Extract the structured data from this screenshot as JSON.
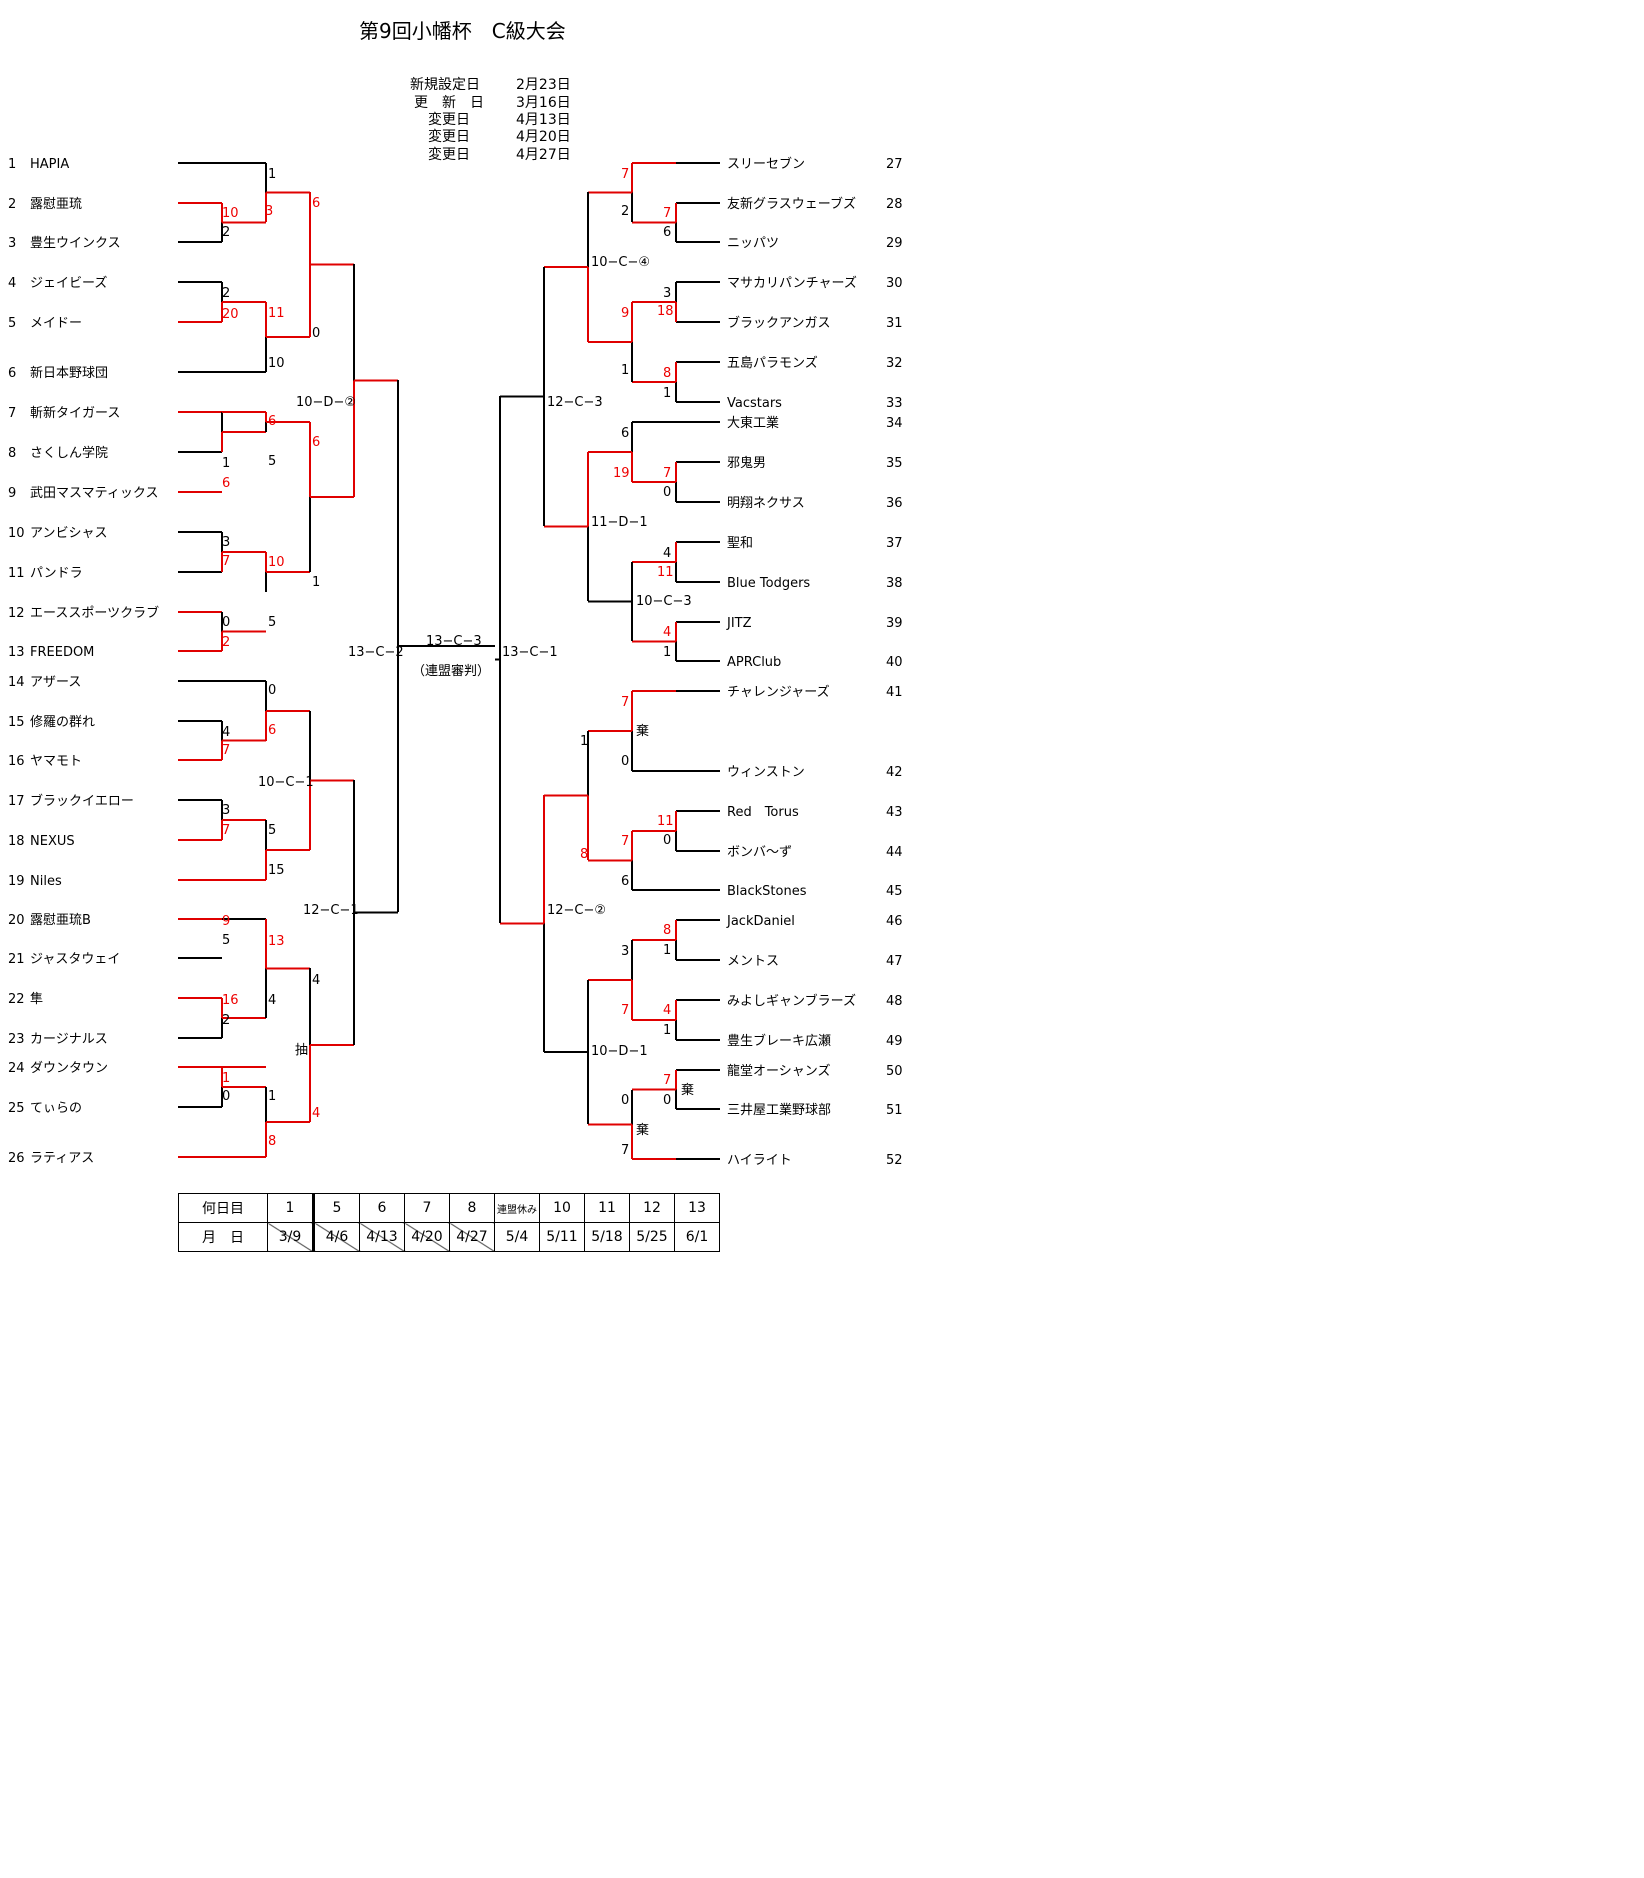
{
  "title": "第9回小幡杯　C級大会",
  "updates": [
    {
      "label": "新規設定日",
      "date": "2月23日",
      "color": "#0000cc"
    },
    {
      "label": "更　新　日",
      "date": "3月16日",
      "color": "#1aa0d8"
    },
    {
      "label": "変更日",
      "date": "4月13日",
      "color": "#2c78c8"
    },
    {
      "label": "変更日",
      "date": "4月20日",
      "color": "#1f5fa8"
    },
    {
      "label": "変更日",
      "date": "4月27日",
      "color": "#e00000"
    }
  ],
  "teams_left": [
    {
      "no": "1",
      "name": "HAPIA"
    },
    {
      "no": "2",
      "name": "露慰亜琉"
    },
    {
      "no": "3",
      "name": "豊生ウインクス"
    },
    {
      "no": "4",
      "name": "ジェイビーズ"
    },
    {
      "no": "5",
      "name": "メイドー"
    },
    {
      "no": "6",
      "name": "新日本野球団"
    },
    {
      "no": "7",
      "name": "斬新タイガース"
    },
    {
      "no": "8",
      "name": "さくしん学院"
    },
    {
      "no": "9",
      "name": "武田マスマティックス"
    },
    {
      "no": "10",
      "name": "アンビシャス"
    },
    {
      "no": "11",
      "name": "パンドラ"
    },
    {
      "no": "12",
      "name": "エーススポーツクラブ"
    },
    {
      "no": "13",
      "name": "FREEDOM"
    },
    {
      "no": "14",
      "name": "アザース"
    },
    {
      "no": "15",
      "name": "修羅の群れ"
    },
    {
      "no": "16",
      "name": "ヤマモト"
    },
    {
      "no": "17",
      "name": "ブラックイエロー"
    },
    {
      "no": "18",
      "name": "NEXUS"
    },
    {
      "no": "19",
      "name": "Niles"
    },
    {
      "no": "20",
      "name": "露慰亜琉B"
    },
    {
      "no": "21",
      "name": "ジャスタウェイ"
    },
    {
      "no": "22",
      "name": "隼"
    },
    {
      "no": "23",
      "name": "カージナルス"
    },
    {
      "no": "24",
      "name": "ダウンタウン"
    },
    {
      "no": "25",
      "name": "てぃらの"
    },
    {
      "no": "26",
      "name": "ラティアス"
    }
  ],
  "teams_right": [
    {
      "no": "27",
      "name": "スリーセブン"
    },
    {
      "no": "28",
      "name": "友新グラスウェーブズ"
    },
    {
      "no": "29",
      "name": "ニッパツ"
    },
    {
      "no": "30",
      "name": "マサカリパンチャーズ"
    },
    {
      "no": "31",
      "name": "ブラックアンガス"
    },
    {
      "no": "32",
      "name": "五島パラモンズ"
    },
    {
      "no": "33",
      "name": "Vacstars"
    },
    {
      "no": "34",
      "name": "大東工業"
    },
    {
      "no": "35",
      "name": "邪鬼男"
    },
    {
      "no": "36",
      "name": "明翔ネクサス"
    },
    {
      "no": "37",
      "name": "聖和"
    },
    {
      "no": "38",
      "name": "Blue Todgers"
    },
    {
      "no": "39",
      "name": "JITZ"
    },
    {
      "no": "40",
      "name": "APRClub"
    },
    {
      "no": "41",
      "name": "チャレンジャーズ"
    },
    {
      "no": "42",
      "name": "ウィンストン"
    },
    {
      "no": "43",
      "name": "Red　Torus"
    },
    {
      "no": "44",
      "name": "ボンバ～ず"
    },
    {
      "no": "45",
      "name": "BlackStones"
    },
    {
      "no": "46",
      "name": "JackDaniel"
    },
    {
      "no": "47",
      "name": "メントス"
    },
    {
      "no": "48",
      "name": "みよしギャンブラーズ"
    },
    {
      "no": "49",
      "name": "豊生ブレーキ広瀬"
    },
    {
      "no": "50",
      "name": "龍堂オーシャンズ"
    },
    {
      "no": "51",
      "name": "三井屋工業野球部"
    },
    {
      "no": "52",
      "name": "ハイライト"
    }
  ],
  "round_labels": {
    "l_10d2": "10−D−②",
    "l_10c1": "10−C−1",
    "l_12c1": "12−C−1",
    "l_13c2": "13−C−2",
    "final": "13−C−3",
    "final_note": "（連盟審判）",
    "r_13c1": "13−C−1",
    "r_12c3": "12−C−3",
    "r_10c4": "10−C−④",
    "r_11d1": "11−D−1",
    "r_10c3": "10−C−3",
    "r_12c2": "12−C−②",
    "r_10d1": "10−D−1"
  },
  "notes": {
    "lottery": "抽",
    "forfeit_a": "棄",
    "forfeit_b": "棄",
    "forfeit_c": "棄"
  },
  "schedule": {
    "row1_head": "何日目",
    "row2_head": "月　日",
    "rounds": [
      "1",
      "5",
      "6",
      "7",
      "8",
      "連盟休み",
      "10",
      "11",
      "12",
      "13"
    ],
    "dates": [
      "3/9",
      "4/6",
      "4/13",
      "4/20",
      "4/27",
      "5/4",
      "5/11",
      "5/18",
      "5/25",
      "6/1"
    ]
  },
  "colors": {
    "win_line": "#e00000",
    "line": "#000000"
  }
}
